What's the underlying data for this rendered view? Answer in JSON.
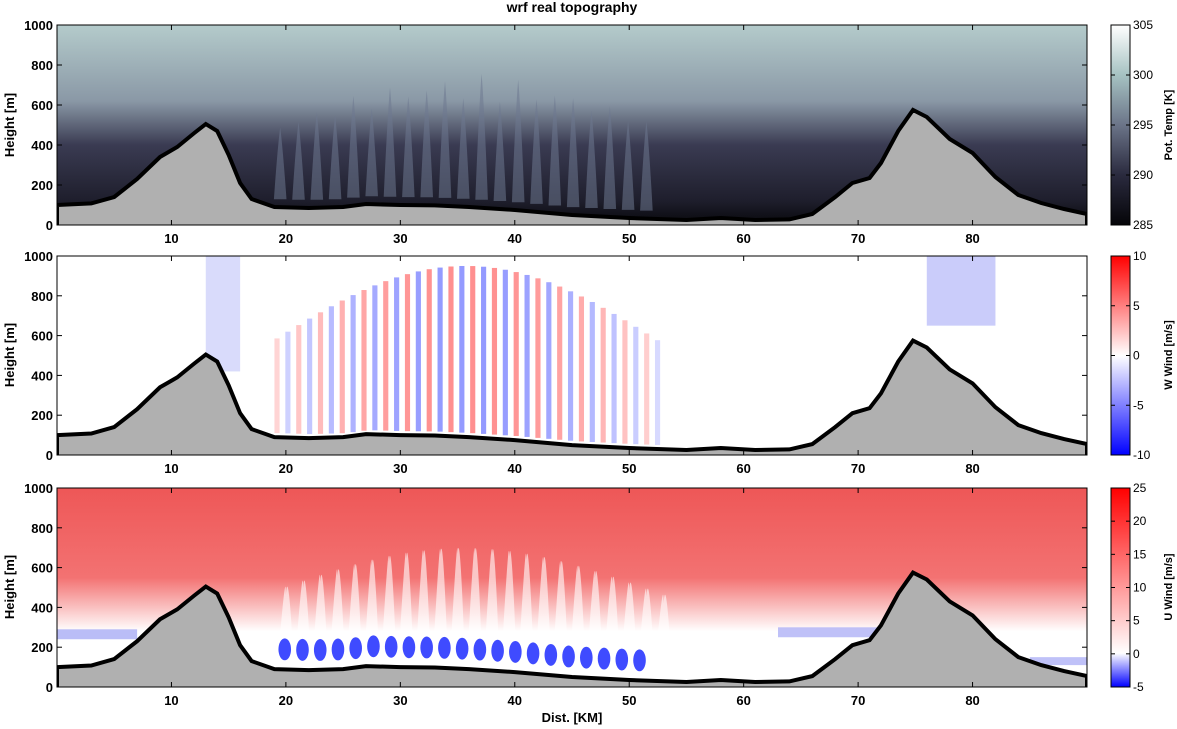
{
  "chart_data": [
    {
      "type": "heatmap",
      "title": "wrf real topography",
      "ylabel": "Height [m]",
      "xlim": [
        0,
        90
      ],
      "ylim": [
        0,
        1000
      ],
      "xticks": [
        10,
        20,
        30,
        40,
        50,
        60,
        70,
        80
      ],
      "yticks": [
        0,
        200,
        400,
        600,
        800,
        1000
      ],
      "colorbar": {
        "label": "Pot. Temp [K]",
        "ticks": [
          285,
          290,
          295,
          300,
          305
        ],
        "range": [
          285,
          305
        ],
        "colormap": "bone"
      },
      "field": "potential temperature"
    },
    {
      "type": "heatmap",
      "ylabel": "Height [m]",
      "xlim": [
        0,
        90
      ],
      "ylim": [
        0,
        1000
      ],
      "xticks": [
        10,
        20,
        30,
        40,
        50,
        60,
        70,
        80
      ],
      "yticks": [
        0,
        200,
        400,
        600,
        800,
        1000
      ],
      "colorbar": {
        "label": "W Wind [m/s]",
        "ticks": [
          -10,
          -5,
          0,
          5,
          10
        ],
        "range": [
          -10,
          10
        ],
        "colormap": "blue-white-red"
      },
      "field": "vertical wind"
    },
    {
      "type": "heatmap",
      "xlabel": "Dist. [KM]",
      "ylabel": "Height [m]",
      "xlim": [
        0,
        90
      ],
      "ylim": [
        0,
        1000
      ],
      "xticks": [
        10,
        20,
        30,
        40,
        50,
        60,
        70,
        80
      ],
      "yticks": [
        0,
        200,
        400,
        600,
        800,
        1000
      ],
      "colorbar": {
        "label": "U Wind [m/s]",
        "ticks": [
          -5,
          0,
          5,
          10,
          15,
          20,
          25
        ],
        "range": [
          -5,
          25
        ],
        "colormap": "blue-white-red"
      },
      "field": "horizontal wind"
    }
  ],
  "terrain": {
    "color": "#b0b0b0",
    "points": [
      [
        0,
        100
      ],
      [
        3,
        108
      ],
      [
        5,
        140
      ],
      [
        7,
        230
      ],
      [
        9,
        340
      ],
      [
        10.5,
        390
      ],
      [
        12,
        460
      ],
      [
        13,
        505
      ],
      [
        14,
        470
      ],
      [
        15,
        350
      ],
      [
        16,
        210
      ],
      [
        17,
        130
      ],
      [
        19,
        90
      ],
      [
        22,
        85
      ],
      [
        25,
        90
      ],
      [
        27,
        105
      ],
      [
        30,
        100
      ],
      [
        33,
        98
      ],
      [
        36,
        90
      ],
      [
        40,
        75
      ],
      [
        45,
        50
      ],
      [
        50,
        35
      ],
      [
        55,
        25
      ],
      [
        58,
        35
      ],
      [
        61,
        25
      ],
      [
        64,
        28
      ],
      [
        66,
        55
      ],
      [
        68,
        140
      ],
      [
        69.5,
        210
      ],
      [
        71,
        235
      ],
      [
        72,
        310
      ],
      [
        73.5,
        470
      ],
      [
        74.8,
        575
      ],
      [
        76,
        540
      ],
      [
        78,
        430
      ],
      [
        80,
        360
      ],
      [
        82,
        240
      ],
      [
        84,
        150
      ],
      [
        86,
        110
      ],
      [
        88,
        80
      ],
      [
        90,
        55
      ]
    ]
  }
}
